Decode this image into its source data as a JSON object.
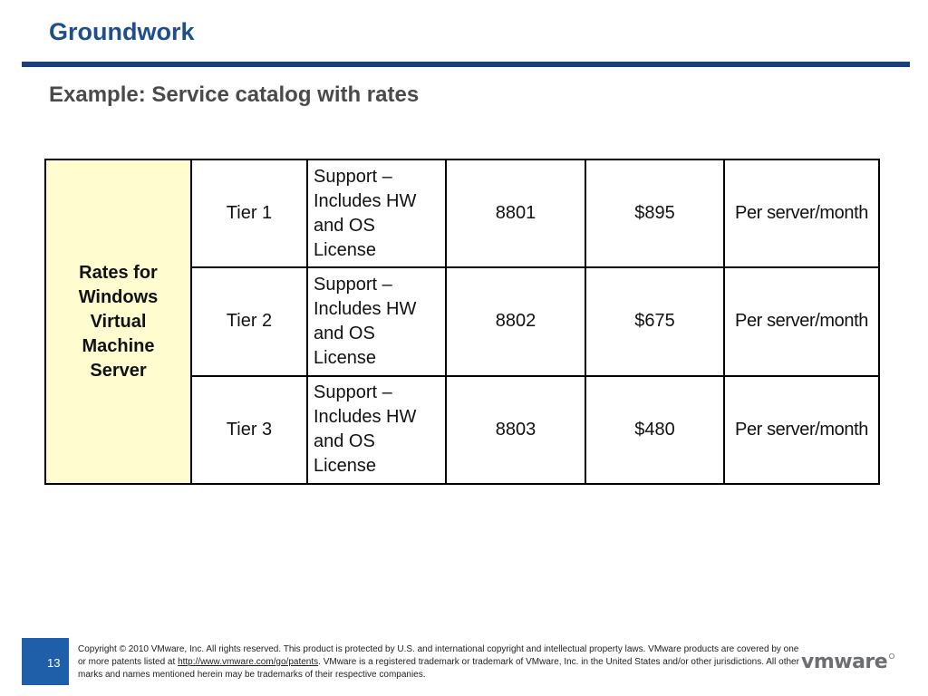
{
  "slide": {
    "title": "Groundwork",
    "subtitle": "Example: Service catalog with rates",
    "page_number": "13"
  },
  "catalog": {
    "category": "Rates for Windows Virtual Machine Server",
    "rows": [
      {
        "tier": "Tier 1",
        "description": "Support – Includes HW and OS License",
        "code": "8801",
        "rate": "$895",
        "unit": "Per server/month"
      },
      {
        "tier": "Tier 2",
        "description": "Support – Includes HW and OS License",
        "code": "8802",
        "rate": "$675",
        "unit": "Per server/month"
      },
      {
        "tier": "Tier 3",
        "description": "Support – Includes HW and OS License",
        "code": "8803",
        "rate": "$480",
        "unit": "Per server/month"
      }
    ]
  },
  "footer": {
    "copyright_part1": "Copyright © 2010 VMware, Inc. All rights reserved. This product is protected by U.S. and international copyright and intellectual property laws. VMware products are covered by one or more patents listed at ",
    "patents_link": "http://www.vmware.com/go/patents",
    "copyright_part2": ". VMware is a registered trademark or trademark of VMware, Inc. in the United States and/or other jurisdictions. All other marks and names mentioned herein may be trademarks of their respective companies.",
    "logo_text": "vmware"
  },
  "colors": {
    "title": "#1f4e8c",
    "rule": "#1a3f7a",
    "category_fill": "#fffdd0",
    "page_bar": "#1f5ea8"
  }
}
